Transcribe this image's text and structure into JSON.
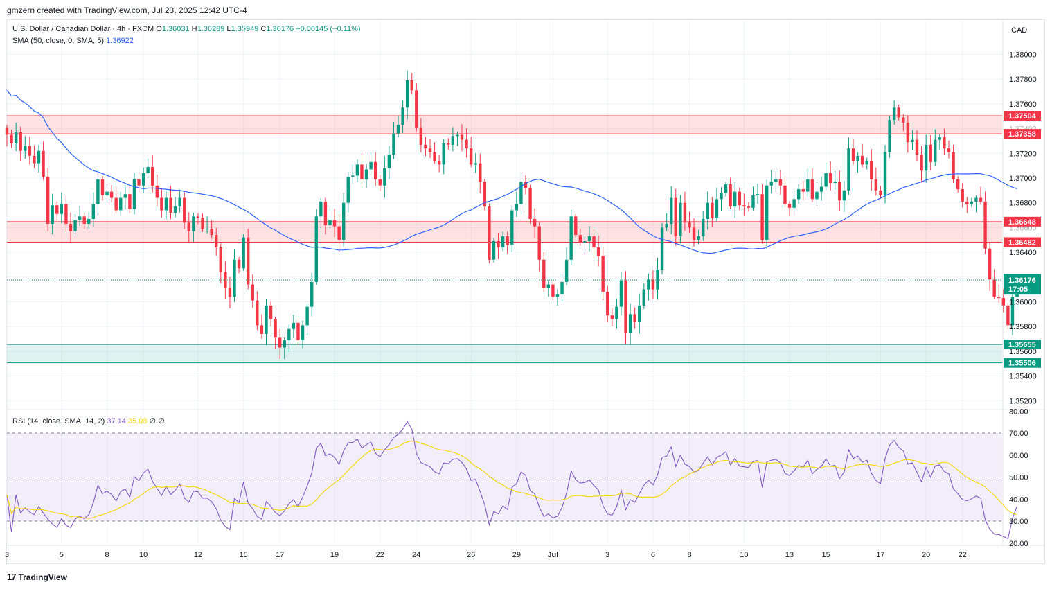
{
  "credit": "gmzern created with TradingView.com, Jul 23, 2025 12:42 UTC-4",
  "legend": {
    "symbol": "U.S. Dollar / Canadian Dollar · 4h · FXCM",
    "o_label": "O",
    "o": "1.36031",
    "h_label": "H",
    "h": "1.36289",
    "l_label": "L",
    "l": "1.35949",
    "c_label": "C",
    "c": "1.36176",
    "change": "+0.00145 (+0.11%)",
    "sma_label": "SMA (50, close, 0, SMA, 5)",
    "sma_value": "1.36922",
    "rsi_label": "RSI (14, close, SMA, 14, 2)",
    "rsi_value": "37.14",
    "rsi_sma_value": "35.08",
    "rsi_extra": "∅ ∅"
  },
  "currency": "CAD",
  "footer": {
    "brand": "TradingView",
    "logo": "17"
  },
  "colors": {
    "up": "#089981",
    "down": "#f23645",
    "sma": "#2962ff",
    "rsi": "#7e57c2",
    "rsi_sma": "#f7d500"
  },
  "chart_data": [
    {
      "type": "candlestick",
      "ylim": [
        1.351,
        1.381
      ],
      "y_ticks": [
        1.38,
        1.378,
        1.376,
        1.374,
        1.372,
        1.37,
        1.368,
        1.366,
        1.364,
        1.362,
        1.36,
        1.358,
        1.356,
        1.354,
        1.352
      ],
      "x_labels": [
        {
          "label": "3",
          "bar": 0
        },
        {
          "label": "5",
          "bar": 12
        },
        {
          "label": "8",
          "bar": 22
        },
        {
          "label": "10",
          "bar": 30
        },
        {
          "label": "12",
          "bar": 42
        },
        {
          "label": "15",
          "bar": 52
        },
        {
          "label": "17",
          "bar": 60
        },
        {
          "label": "19",
          "bar": 72
        },
        {
          "label": "22",
          "bar": 82
        },
        {
          "label": "24",
          "bar": 90
        },
        {
          "label": "26",
          "bar": 102
        },
        {
          "label": "29",
          "bar": 112
        },
        {
          "label": "Jul",
          "bar": 120
        },
        {
          "label": "3",
          "bar": 132
        },
        {
          "label": "6",
          "bar": 142
        },
        {
          "label": "8",
          "bar": 150
        },
        {
          "label": "10",
          "bar": 162
        },
        {
          "label": "13",
          "bar": 172
        },
        {
          "label": "15",
          "bar": 180
        },
        {
          "label": "17",
          "bar": 192
        },
        {
          "label": "20",
          "bar": 202
        },
        {
          "label": "22",
          "bar": 210
        }
      ],
      "zones": [
        {
          "top": 1.37504,
          "bottom": 1.37358,
          "color": "#f23645",
          "labels": [
            "1.37504",
            "1.37358"
          ]
        },
        {
          "top": 1.36648,
          "bottom": 1.36482,
          "color": "#f23645",
          "labels": [
            "1.36648",
            "1.36482"
          ]
        },
        {
          "top": 1.35655,
          "bottom": 1.35506,
          "color": "#089981",
          "labels": [
            "1.35655",
            "1.35506"
          ]
        }
      ],
      "last_price": {
        "value": 1.36176,
        "label": "1.36176",
        "countdown": "17:05"
      },
      "closes": [
        1.3735,
        1.3728,
        1.3737,
        1.3722,
        1.3726,
        1.3718,
        1.3712,
        1.3722,
        1.3701,
        1.3663,
        1.3678,
        1.3671,
        1.3679,
        1.3663,
        1.3657,
        1.3666,
        1.3669,
        1.3663,
        1.3667,
        1.3679,
        1.3699,
        1.3686,
        1.3689,
        1.3684,
        1.3674,
        1.3684,
        1.3687,
        1.3675,
        1.3699,
        1.3694,
        1.3704,
        1.3709,
        1.3694,
        1.3684,
        1.3674,
        1.3684,
        1.3672,
        1.3677,
        1.3684,
        1.3664,
        1.3657,
        1.3669,
        1.3668,
        1.3659,
        1.3659,
        1.3654,
        1.3644,
        1.3624,
        1.3611,
        1.3604,
        1.3634,
        1.3627,
        1.3652,
        1.3614,
        1.3601,
        1.3581,
        1.3574,
        1.3597,
        1.3586,
        1.3571,
        1.3563,
        1.3569,
        1.3578,
        1.3583,
        1.3569,
        1.3581,
        1.3596,
        1.3616,
        1.3669,
        1.3681,
        1.3662,
        1.3666,
        1.3661,
        1.365,
        1.368,
        1.3701,
        1.3702,
        1.3711,
        1.3699,
        1.3707,
        1.3713,
        1.3699,
        1.3694,
        1.3708,
        1.3719,
        1.3736,
        1.3743,
        1.3757,
        1.3779,
        1.3771,
        1.3741,
        1.3727,
        1.3724,
        1.3721,
        1.3714,
        1.3711,
        1.3728,
        1.3727,
        1.3734,
        1.3735,
        1.3731,
        1.3724,
        1.3711,
        1.3712,
        1.3697,
        1.3677,
        1.3634,
        1.3649,
        1.3644,
        1.3653,
        1.3646,
        1.3674,
        1.3679,
        1.3697,
        1.3692,
        1.3667,
        1.3661,
        1.3634,
        1.3611,
        1.3614,
        1.3604,
        1.3606,
        1.3616,
        1.3634,
        1.3669,
        1.3654,
        1.3648,
        1.3649,
        1.3653,
        1.3644,
        1.3637,
        1.3608,
        1.3589,
        1.3586,
        1.3596,
        1.3617,
        1.3575,
        1.359,
        1.3584,
        1.3597,
        1.361,
        1.3618,
        1.361,
        1.3626,
        1.366,
        1.3663,
        1.3684,
        1.3653,
        1.368,
        1.3664,
        1.366,
        1.365,
        1.3653,
        1.3667,
        1.368,
        1.3668,
        1.3683,
        1.3688,
        1.3695,
        1.3677,
        1.3689,
        1.3678,
        1.3677,
        1.3676,
        1.3686,
        1.3687,
        1.365,
        1.3694,
        1.3697,
        1.3699,
        1.3694,
        1.3679,
        1.3676,
        1.3683,
        1.3691,
        1.3689,
        1.3699,
        1.3683,
        1.3689,
        1.3693,
        1.3704,
        1.3696,
        1.3697,
        1.3682,
        1.369,
        1.3724,
        1.3714,
        1.3718,
        1.3711,
        1.3714,
        1.3699,
        1.369,
        1.3686,
        1.3721,
        1.3747,
        1.3757,
        1.3749,
        1.3745,
        1.3729,
        1.3731,
        1.3719,
        1.3706,
        1.3727,
        1.3713,
        1.3731,
        1.3733,
        1.3724,
        1.3721,
        1.3699,
        1.3691,
        1.3681,
        1.3679,
        1.3681,
        1.3684,
        1.3681,
        1.3643,
        1.3618,
        1.3604,
        1.3603,
        1.3597,
        1.3581,
        1.3604,
        1.3618
      ]
    },
    {
      "type": "line",
      "name": "RSI (14, close, SMA, 14, 2)",
      "ylim": [
        20,
        80
      ],
      "y_ticks": [
        80,
        70,
        60,
        50,
        40,
        30,
        20
      ],
      "band": [
        30,
        70
      ],
      "levels": [
        70,
        50,
        30
      ]
    }
  ]
}
